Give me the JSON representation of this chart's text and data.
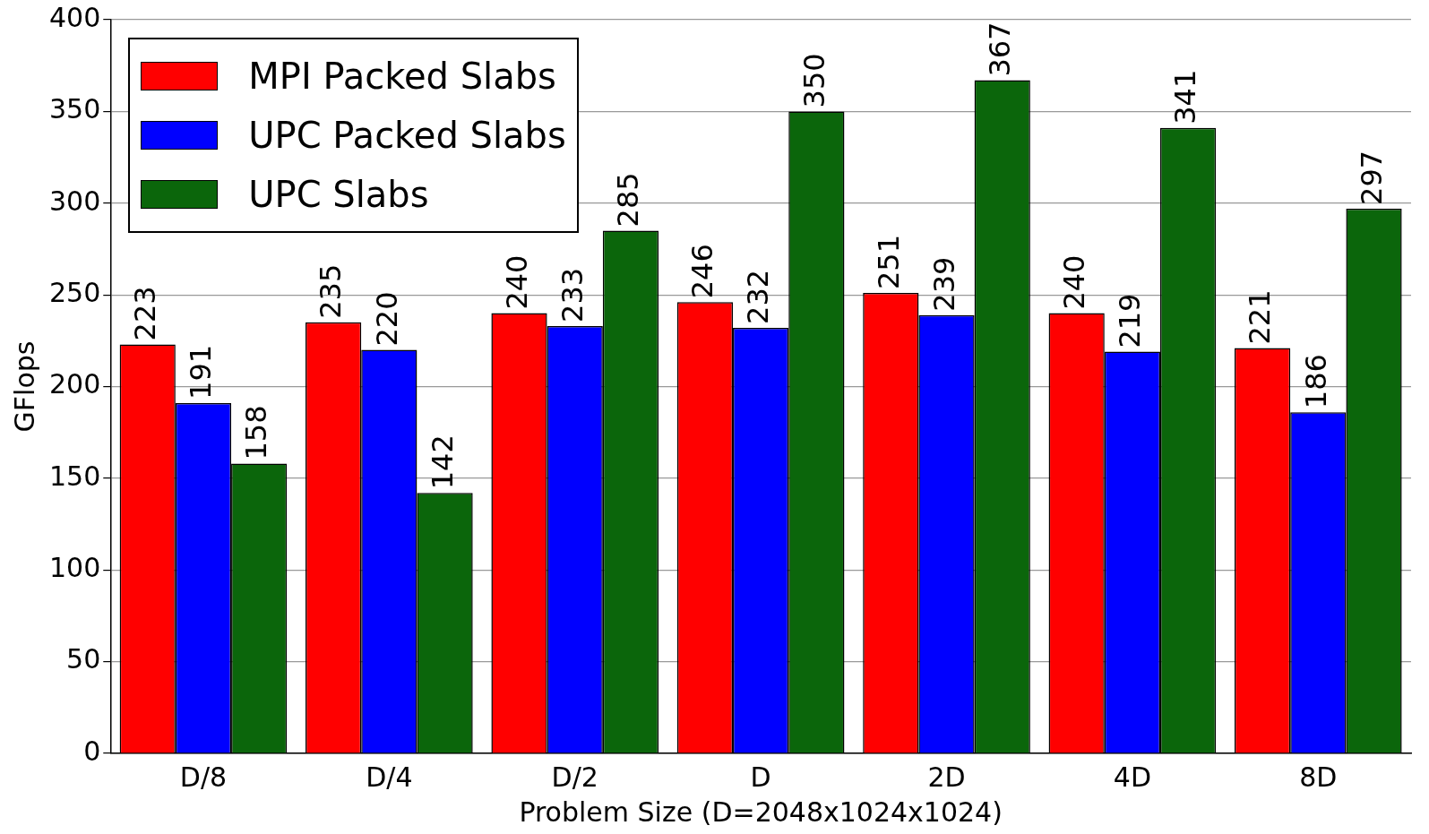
{
  "chart_data": {
    "type": "bar",
    "xlabel": "Problem Size (D=2048x1024x1024)",
    "ylabel": "GFlops",
    "categories": [
      "D/8",
      "D/4",
      "D/2",
      "D",
      "2D",
      "4D",
      "8D"
    ],
    "series": [
      {
        "name": "MPI Packed Slabs",
        "color": "#ff0000",
        "values": [
          223,
          235,
          240,
          246,
          251,
          240,
          221
        ]
      },
      {
        "name": "UPC Packed Slabs",
        "color": "#0000ff",
        "values": [
          191,
          220,
          233,
          232,
          239,
          219,
          186
        ]
      },
      {
        "name": "UPC Slabs",
        "color": "#0b660b",
        "values": [
          158,
          142,
          285,
          350,
          367,
          341,
          297
        ]
      }
    ],
    "ylim": [
      0,
      400
    ],
    "yticks": [
      0,
      50,
      100,
      150,
      200,
      250,
      300,
      350,
      400
    ],
    "grid": "y",
    "legend": "top left",
    "data_labels": true
  }
}
